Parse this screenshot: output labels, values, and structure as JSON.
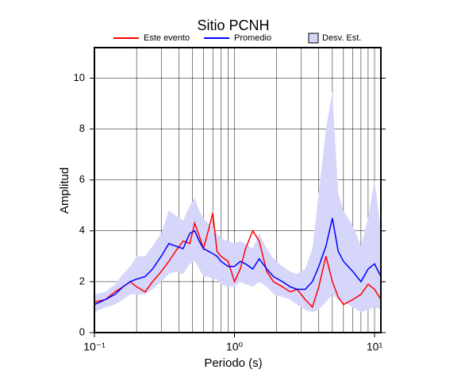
{
  "chart_data": {
    "type": "line",
    "title": "Sitio PCNH",
    "xlabel": "Periodo (s)",
    "ylabel": "Amplitud",
    "xscale": "log",
    "grid": true,
    "legend": "top",
    "xlim": [
      0.1,
      11.1
    ],
    "ylim": [
      0,
      11.2
    ],
    "xticks": [
      {
        "value": 0.1,
        "label": "10⁻¹"
      },
      {
        "value": 1,
        "label": "10⁰"
      },
      {
        "value": 10,
        "label": "10¹"
      }
    ],
    "xgrid": [
      0.2,
      0.3,
      0.4,
      0.5,
      0.6,
      0.7,
      0.8,
      0.9,
      2,
      3,
      4,
      5,
      6,
      7,
      8,
      9
    ],
    "yticks": [
      0,
      2,
      4,
      6,
      8,
      10
    ],
    "x": [
      0.1,
      0.12,
      0.14,
      0.16,
      0.18,
      0.2,
      0.23,
      0.26,
      0.3,
      0.34,
      0.38,
      0.43,
      0.48,
      0.52,
      0.56,
      0.6,
      0.65,
      0.7,
      0.75,
      0.8,
      0.9,
      1.0,
      1.1,
      1.2,
      1.35,
      1.5,
      1.7,
      1.9,
      2.2,
      2.5,
      2.8,
      3.2,
      3.6,
      4.0,
      4.5,
      5.0,
      5.5,
      6.0,
      7.0,
      8.0,
      9.0,
      10.0,
      11.1
    ],
    "series": [
      {
        "name": "Este evento",
        "color": "#ff0000",
        "values": [
          1.2,
          1.3,
          1.6,
          1.8,
          2.0,
          1.8,
          1.6,
          2.0,
          2.4,
          2.8,
          3.2,
          3.6,
          3.5,
          4.3,
          3.8,
          3.3,
          4.0,
          4.7,
          3.2,
          3.0,
          2.8,
          2.0,
          2.5,
          3.3,
          4.0,
          3.6,
          2.4,
          2.0,
          1.8,
          1.6,
          1.7,
          1.3,
          1.0,
          1.8,
          3.0,
          2.0,
          1.4,
          1.1,
          1.3,
          1.5,
          1.9,
          1.7,
          1.3
        ]
      },
      {
        "name": "Promedio",
        "color": "#0000ff",
        "values": [
          1.1,
          1.3,
          1.5,
          1.8,
          2.0,
          2.1,
          2.2,
          2.5,
          3.0,
          3.5,
          3.4,
          3.3,
          3.9,
          4.0,
          3.6,
          3.3,
          3.2,
          3.1,
          3.0,
          2.8,
          2.6,
          2.6,
          2.8,
          2.7,
          2.5,
          2.9,
          2.5,
          2.2,
          2.0,
          1.8,
          1.7,
          1.7,
          2.0,
          2.6,
          3.4,
          4.5,
          3.2,
          2.8,
          2.4,
          2.0,
          2.5,
          2.7,
          2.2
        ]
      },
      {
        "name": "Desv. Est.",
        "color": "#d6d6fa",
        "lower": [
          0.8,
          1.0,
          1.1,
          1.3,
          1.5,
          1.5,
          1.5,
          1.7,
          2.0,
          2.3,
          2.4,
          2.3,
          2.7,
          2.8,
          2.5,
          2.2,
          2.2,
          2.1,
          2.1,
          1.9,
          1.8,
          1.8,
          2.0,
          1.9,
          1.8,
          2.0,
          1.8,
          1.5,
          1.4,
          1.3,
          1.1,
          0.9,
          0.8,
          0.9,
          1.2,
          1.5,
          1.3,
          1.2,
          1.0,
          0.8,
          0.9,
          1.0,
          0.9
        ],
        "upper": [
          1.5,
          1.6,
          1.9,
          2.3,
          2.6,
          3.0,
          3.0,
          3.4,
          3.9,
          4.8,
          4.6,
          4.4,
          5.0,
          5.3,
          4.8,
          4.5,
          4.3,
          4.1,
          3.9,
          3.7,
          3.6,
          3.5,
          3.6,
          3.5,
          3.3,
          3.9,
          3.3,
          2.9,
          2.6,
          2.4,
          2.3,
          2.5,
          3.3,
          5.5,
          8.0,
          9.5,
          5.5,
          4.8,
          4.2,
          3.4,
          4.5,
          6.0,
          4.0
        ]
      }
    ]
  }
}
